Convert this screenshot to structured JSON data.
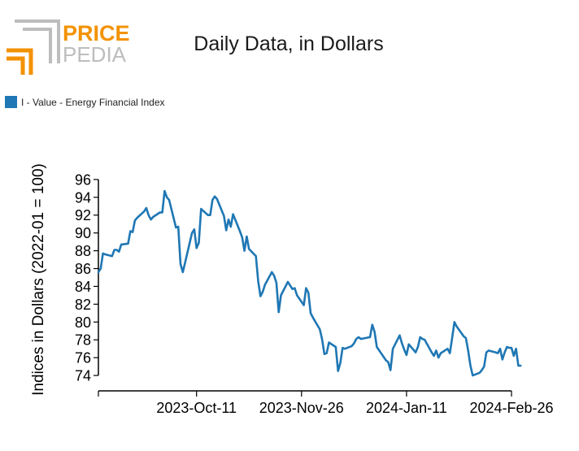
{
  "logo": {
    "line1": "PRICE",
    "line2": "PEDIA"
  },
  "colors": {
    "accent": "#f39200",
    "logo_gray": "#bdbdbd",
    "series": "#1f77b4",
    "axis": "#000000"
  },
  "chart_data": {
    "type": "line",
    "title": "Daily Data, in Dollars",
    "ylabel": "Indices in Dollars (2022-01 = 100)",
    "xlabel": "",
    "ylim": [
      72.5,
      96.5
    ],
    "yticks": [
      74,
      76,
      78,
      80,
      82,
      84,
      86,
      88,
      90,
      92,
      94,
      96
    ],
    "xlim": [
      "2023-08-29",
      "2024-02-26"
    ],
    "xticks": [
      {
        "date": "2023-08-29",
        "label": ""
      },
      {
        "date": "2023-10-11",
        "label": "2023-Oct-11"
      },
      {
        "date": "2023-11-26",
        "label": "2023-Nov-26"
      },
      {
        "date": "2024-01-11",
        "label": "2024-Jan-11"
      },
      {
        "date": "2024-02-26",
        "label": "2024-Feb-26"
      }
    ],
    "legend_position": "top-left",
    "grid": false,
    "series": [
      {
        "name": "I - Value - Energy Financial Index",
        "points": [
          [
            "2023-08-29",
            85.6
          ],
          [
            "2023-08-30",
            86.0
          ],
          [
            "2023-08-31",
            87.7
          ],
          [
            "2023-09-01",
            87.6
          ],
          [
            "2023-09-04",
            87.4
          ],
          [
            "2023-09-05",
            88.1
          ],
          [
            "2023-09-06",
            88.1
          ],
          [
            "2023-09-07",
            87.9
          ],
          [
            "2023-09-08",
            88.7
          ],
          [
            "2023-09-11",
            88.8
          ],
          [
            "2023-09-12",
            90.2
          ],
          [
            "2023-09-13",
            90.1
          ],
          [
            "2023-09-14",
            91.4
          ],
          [
            "2023-09-15",
            91.7
          ],
          [
            "2023-09-18",
            92.4
          ],
          [
            "2023-09-19",
            92.8
          ],
          [
            "2023-09-20",
            92.0
          ],
          [
            "2023-09-21",
            91.5
          ],
          [
            "2023-09-22",
            91.8
          ],
          [
            "2023-09-25",
            92.3
          ],
          [
            "2023-09-26",
            92.3
          ],
          [
            "2023-09-27",
            94.7
          ],
          [
            "2023-09-28",
            94.0
          ],
          [
            "2023-09-29",
            93.7
          ],
          [
            "2023-10-02",
            90.6
          ],
          [
            "2023-10-03",
            90.7
          ],
          [
            "2023-10-04",
            86.5
          ],
          [
            "2023-10-05",
            85.6
          ],
          [
            "2023-10-06",
            86.7
          ],
          [
            "2023-10-09",
            90.0
          ],
          [
            "2023-10-10",
            90.4
          ],
          [
            "2023-10-11",
            88.3
          ],
          [
            "2023-10-12",
            88.9
          ],
          [
            "2023-10-13",
            92.7
          ],
          [
            "2023-10-16",
            92.0
          ],
          [
            "2023-10-17",
            92.0
          ],
          [
            "2023-10-18",
            93.7
          ],
          [
            "2023-10-19",
            94.1
          ],
          [
            "2023-10-20",
            93.8
          ],
          [
            "2023-10-23",
            91.9
          ],
          [
            "2023-10-24",
            90.3
          ],
          [
            "2023-10-25",
            91.5
          ],
          [
            "2023-10-26",
            90.7
          ],
          [
            "2023-10-27",
            92.1
          ],
          [
            "2023-10-30",
            90.2
          ],
          [
            "2023-10-31",
            89.5
          ],
          [
            "2023-11-01",
            88.0
          ],
          [
            "2023-11-02",
            89.6
          ],
          [
            "2023-11-03",
            88.2
          ],
          [
            "2023-11-06",
            87.4
          ],
          [
            "2023-11-07",
            84.6
          ],
          [
            "2023-11-08",
            82.9
          ],
          [
            "2023-11-09",
            83.4
          ],
          [
            "2023-11-10",
            84.2
          ],
          [
            "2023-11-13",
            85.6
          ],
          [
            "2023-11-14",
            85.2
          ],
          [
            "2023-11-15",
            84.4
          ],
          [
            "2023-11-16",
            81.1
          ],
          [
            "2023-11-17",
            83.0
          ],
          [
            "2023-11-20",
            84.5
          ],
          [
            "2023-11-21",
            84.1
          ],
          [
            "2023-11-22",
            83.7
          ],
          [
            "2023-11-23",
            83.8
          ],
          [
            "2023-11-24",
            83.0
          ],
          [
            "2023-11-27",
            81.9
          ],
          [
            "2023-11-28",
            83.8
          ],
          [
            "2023-11-29",
            83.3
          ],
          [
            "2023-11-30",
            81.0
          ],
          [
            "2023-12-01",
            80.5
          ],
          [
            "2023-12-04",
            79.2
          ],
          [
            "2023-12-05",
            78.1
          ],
          [
            "2023-12-06",
            76.4
          ],
          [
            "2023-12-07",
            76.5
          ],
          [
            "2023-12-08",
            77.7
          ],
          [
            "2023-12-11",
            77.2
          ],
          [
            "2023-12-12",
            74.5
          ],
          [
            "2023-12-13",
            75.4
          ],
          [
            "2023-12-14",
            77.1
          ],
          [
            "2023-12-15",
            77.0
          ],
          [
            "2023-12-18",
            77.3
          ],
          [
            "2023-12-19",
            77.6
          ],
          [
            "2023-12-20",
            78.1
          ],
          [
            "2023-12-21",
            78.3
          ],
          [
            "2023-12-22",
            78.1
          ],
          [
            "2023-12-26",
            78.3
          ],
          [
            "2023-12-27",
            79.7
          ],
          [
            "2023-12-28",
            78.9
          ],
          [
            "2023-12-29",
            77.2
          ],
          [
            "2024-01-02",
            75.7
          ],
          [
            "2024-01-03",
            75.5
          ],
          [
            "2024-01-04",
            74.6
          ],
          [
            "2024-01-05",
            77.0
          ],
          [
            "2024-01-08",
            78.5
          ],
          [
            "2024-01-09",
            77.6
          ],
          [
            "2024-01-10",
            76.9
          ],
          [
            "2024-01-11",
            76.3
          ],
          [
            "2024-01-12",
            77.5
          ],
          [
            "2024-01-15",
            76.6
          ],
          [
            "2024-01-16",
            77.2
          ],
          [
            "2024-01-17",
            78.3
          ],
          [
            "2024-01-18",
            78.1
          ],
          [
            "2024-01-19",
            78.0
          ],
          [
            "2024-01-22",
            76.6
          ],
          [
            "2024-01-23",
            76.2
          ],
          [
            "2024-01-24",
            76.8
          ],
          [
            "2024-01-25",
            76.0
          ],
          [
            "2024-01-26",
            76.5
          ],
          [
            "2024-01-29",
            77.0
          ],
          [
            "2024-01-30",
            76.5
          ],
          [
            "2024-01-31",
            78.2
          ],
          [
            "2024-02-01",
            80.0
          ],
          [
            "2024-02-02",
            79.5
          ],
          [
            "2024-02-05",
            78.4
          ],
          [
            "2024-02-06",
            78.2
          ],
          [
            "2024-02-07",
            76.8
          ],
          [
            "2024-02-08",
            75.1
          ],
          [
            "2024-02-09",
            74.0
          ],
          [
            "2024-02-12",
            74.3
          ],
          [
            "2024-02-13",
            74.6
          ],
          [
            "2024-02-14",
            75.0
          ],
          [
            "2024-02-15",
            76.6
          ],
          [
            "2024-02-16",
            76.8
          ],
          [
            "2024-02-19",
            76.6
          ],
          [
            "2024-02-20",
            76.5
          ],
          [
            "2024-02-21",
            77.0
          ],
          [
            "2024-02-22",
            75.8
          ],
          [
            "2024-02-23",
            76.6
          ],
          [
            "2024-02-24",
            77.2
          ],
          [
            "2024-02-25",
            77.1
          ],
          [
            "2024-02-26",
            77.1
          ],
          [
            "2024-02-27",
            76.2
          ],
          [
            "2024-02-28",
            77.0
          ],
          [
            "2024-02-29",
            75.1
          ],
          [
            "2024-03-01",
            75.1
          ]
        ]
      }
    ]
  }
}
